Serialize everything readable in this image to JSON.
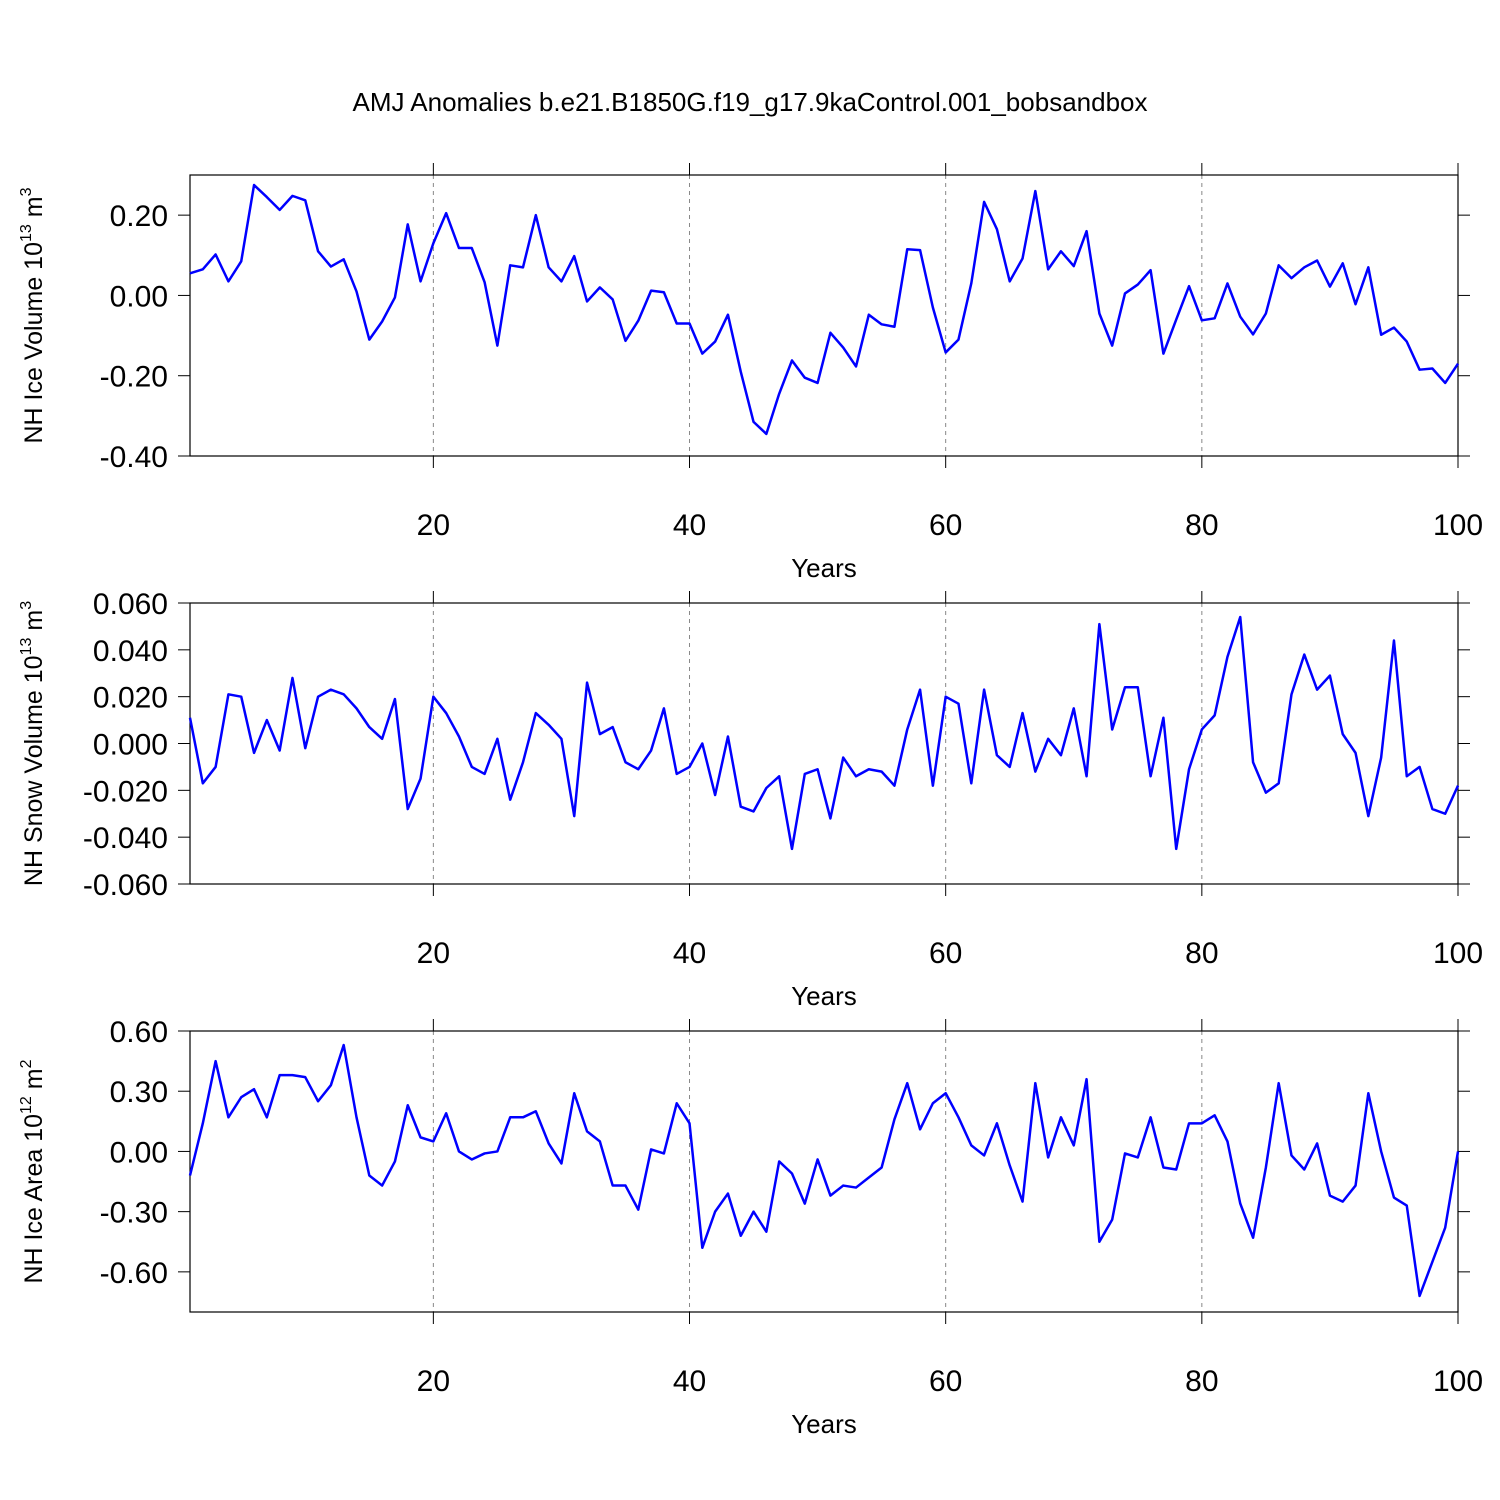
{
  "chart_data": [
    {
      "type": "line",
      "title": "AMJ Anomalies b.e21.B1850G.f19_g17.9kaControl.001_bobsandbox",
      "ylabel": [
        "NH Ice Volume 10",
        "13",
        "m",
        "3"
      ],
      "xlabel": "Years",
      "color": "#0000ff",
      "x": [
        1,
        2,
        3,
        4,
        5,
        6,
        7,
        8,
        9,
        10,
        11,
        12,
        13,
        14,
        15,
        16,
        17,
        18,
        19,
        20,
        21,
        22,
        23,
        24,
        25,
        26,
        27,
        28,
        29,
        30,
        31,
        32,
        33,
        34,
        35,
        36,
        37,
        38,
        39,
        40,
        41,
        42,
        43,
        44,
        45,
        46,
        47,
        48,
        49,
        50,
        51,
        52,
        53,
        54,
        55,
        56,
        57,
        58,
        59,
        60,
        61,
        62,
        63,
        64,
        65,
        66,
        67,
        68,
        69,
        70,
        71,
        72,
        73,
        74,
        75,
        76,
        77,
        78,
        79,
        80,
        81,
        82,
        83,
        84,
        85,
        86,
        87,
        88,
        89,
        90,
        91,
        92,
        93,
        94,
        95,
        96,
        97,
        98,
        99,
        100
      ],
      "values": [
        0.055,
        0.065,
        0.102,
        0.035,
        0.085,
        0.275,
        0.245,
        0.213,
        0.248,
        0.237,
        0.11,
        0.072,
        0.09,
        0.01,
        -0.11,
        -0.065,
        -0.005,
        0.177,
        0.035,
        0.13,
        0.205,
        0.118,
        0.118,
        0.033,
        -0.125,
        0.075,
        0.07,
        0.2,
        0.07,
        0.035,
        0.098,
        -0.015,
        0.02,
        -0.01,
        -0.113,
        -0.063,
        0.012,
        0.008,
        -0.07,
        -0.07,
        -0.145,
        -0.115,
        -0.048,
        -0.19,
        -0.315,
        -0.345,
        -0.245,
        -0.162,
        -0.205,
        -0.218,
        -0.093,
        -0.13,
        -0.177,
        -0.048,
        -0.072,
        -0.078,
        0.115,
        0.113,
        -0.03,
        -0.142,
        -0.11,
        0.03,
        0.233,
        0.165,
        0.035,
        0.092,
        0.26,
        0.065,
        0.11,
        0.073,
        0.16,
        -0.045,
        -0.125,
        0.005,
        0.027,
        0.063,
        -0.145,
        -0.06,
        0.023,
        -0.062,
        -0.057,
        0.03,
        -0.053,
        -0.097,
        -0.045,
        0.075,
        0.043,
        0.07,
        0.087,
        0.022,
        0.08,
        -0.022,
        0.07,
        -0.098,
        -0.08,
        -0.115,
        -0.185,
        -0.182,
        -0.218,
        -0.17
      ],
      "xlim": [
        1,
        100
      ],
      "xticks": [
        20,
        40,
        60,
        80,
        100
      ],
      "ylim": [
        -0.4,
        0.3
      ],
      "yticks": [
        {
          "value": -0.4,
          "label": "-0.40"
        },
        {
          "value": -0.2,
          "label": "-0.20"
        },
        {
          "value": 0,
          "label": "0.00"
        },
        {
          "value": 0.2,
          "label": "0.20"
        }
      ],
      "grid": true
    },
    {
      "type": "line",
      "ylabel": [
        "NH Snow Volume 10",
        "13",
        "m",
        "3"
      ],
      "xlabel": "Years",
      "color": "#0000ff",
      "x": [
        1,
        2,
        3,
        4,
        5,
        6,
        7,
        8,
        9,
        10,
        11,
        12,
        13,
        14,
        15,
        16,
        17,
        18,
        19,
        20,
        21,
        22,
        23,
        24,
        25,
        26,
        27,
        28,
        29,
        30,
        31,
        32,
        33,
        34,
        35,
        36,
        37,
        38,
        39,
        40,
        41,
        42,
        43,
        44,
        45,
        46,
        47,
        48,
        49,
        50,
        51,
        52,
        53,
        54,
        55,
        56,
        57,
        58,
        59,
        60,
        61,
        62,
        63,
        64,
        65,
        66,
        67,
        68,
        69,
        70,
        71,
        72,
        73,
        74,
        75,
        76,
        77,
        78,
        79,
        80,
        81,
        82,
        83,
        84,
        85,
        86,
        87,
        88,
        89,
        90,
        91,
        92,
        93,
        94,
        95,
        96,
        97,
        98,
        99,
        100
      ],
      "values": [
        0.011,
        -0.017,
        -0.01,
        0.021,
        0.02,
        -0.004,
        0.01,
        -0.003,
        0.028,
        -0.002,
        0.02,
        0.023,
        0.021,
        0.015,
        0.007,
        0.002,
        0.019,
        -0.028,
        -0.015,
        0.02,
        0.013,
        0.003,
        -0.01,
        -0.013,
        0.002,
        -0.024,
        -0.008,
        0.013,
        0.008,
        0.002,
        -0.031,
        0.026,
        0.004,
        0.007,
        -0.008,
        -0.011,
        -0.003,
        0.015,
        -0.013,
        -0.01,
        0.0,
        -0.022,
        0.003,
        -0.027,
        -0.029,
        -0.019,
        -0.014,
        -0.045,
        -0.013,
        -0.011,
        -0.032,
        -0.006,
        -0.014,
        -0.011,
        -0.012,
        -0.018,
        0.006,
        0.023,
        -0.018,
        0.02,
        0.017,
        -0.017,
        0.023,
        -0.005,
        -0.01,
        0.013,
        -0.012,
        0.002,
        -0.005,
        0.015,
        -0.014,
        0.051,
        0.006,
        0.024,
        0.024,
        -0.014,
        0.011,
        -0.045,
        -0.011,
        0.006,
        0.012,
        0.037,
        0.054,
        -0.008,
        -0.021,
        -0.017,
        0.021,
        0.038,
        0.023,
        0.029,
        0.004,
        -0.004,
        -0.031,
        -0.006,
        0.044,
        -0.014,
        -0.01,
        -0.028,
        -0.03,
        -0.018
      ],
      "xlim": [
        1,
        100
      ],
      "xticks": [
        20,
        40,
        60,
        80,
        100
      ],
      "ylim": [
        -0.06,
        0.06
      ],
      "yticks": [
        {
          "value": -0.06,
          "label": "-0.060"
        },
        {
          "value": -0.04,
          "label": "-0.040"
        },
        {
          "value": -0.02,
          "label": "-0.020"
        },
        {
          "value": 0,
          "label": "0.000"
        },
        {
          "value": 0.02,
          "label": "0.020"
        },
        {
          "value": 0.04,
          "label": "0.040"
        },
        {
          "value": 0.06,
          "label": "0.060"
        }
      ],
      "grid": true
    },
    {
      "type": "line",
      "ylabel": [
        "NH Ice Area 10",
        "12",
        "m",
        "2"
      ],
      "xlabel": "Years",
      "color": "#0000ff",
      "x": [
        1,
        2,
        3,
        4,
        5,
        6,
        7,
        8,
        9,
        10,
        11,
        12,
        13,
        14,
        15,
        16,
        17,
        18,
        19,
        20,
        21,
        22,
        23,
        24,
        25,
        26,
        27,
        28,
        29,
        30,
        31,
        32,
        33,
        34,
        35,
        36,
        37,
        38,
        39,
        40,
        41,
        42,
        43,
        44,
        45,
        46,
        47,
        48,
        49,
        50,
        51,
        52,
        53,
        54,
        55,
        56,
        57,
        58,
        59,
        60,
        61,
        62,
        63,
        64,
        65,
        66,
        67,
        68,
        69,
        70,
        71,
        72,
        73,
        74,
        75,
        76,
        77,
        78,
        79,
        80,
        81,
        82,
        83,
        84,
        85,
        86,
        87,
        88,
        89,
        90,
        91,
        92,
        93,
        94,
        95,
        96,
        97,
        98,
        99,
        100
      ],
      "values": [
        -0.12,
        0.14,
        0.45,
        0.17,
        0.27,
        0.31,
        0.17,
        0.38,
        0.38,
        0.37,
        0.25,
        0.33,
        0.53,
        0.17,
        -0.12,
        -0.17,
        -0.05,
        0.23,
        0.07,
        0.05,
        0.19,
        0.0,
        -0.04,
        -0.01,
        0.0,
        0.17,
        0.17,
        0.2,
        0.04,
        -0.06,
        0.29,
        0.1,
        0.05,
        -0.17,
        -0.17,
        -0.29,
        0.01,
        -0.01,
        0.24,
        0.14,
        -0.48,
        -0.3,
        -0.21,
        -0.42,
        -0.3,
        -0.4,
        -0.05,
        -0.11,
        -0.26,
        -0.04,
        -0.22,
        -0.17,
        -0.18,
        -0.13,
        -0.08,
        0.16,
        0.34,
        0.11,
        0.24,
        0.29,
        0.17,
        0.03,
        -0.02,
        0.14,
        -0.07,
        -0.25,
        0.34,
        -0.03,
        0.17,
        0.03,
        0.36,
        -0.45,
        -0.34,
        -0.01,
        -0.03,
        0.17,
        -0.08,
        -0.09,
        0.14,
        0.14,
        0.18,
        0.05,
        -0.26,
        -0.43,
        -0.08,
        0.34,
        -0.02,
        -0.09,
        0.04,
        -0.22,
        -0.25,
        -0.17,
        0.29,
        0.0,
        -0.23,
        -0.27,
        -0.72,
        -0.55,
        -0.38,
        0.0
      ],
      "xlim": [
        1,
        100
      ],
      "xticks": [
        20,
        40,
        60,
        80,
        100
      ],
      "ylim": [
        -0.8,
        0.6
      ],
      "yticks": [
        {
          "value": -0.6,
          "label": "-0.60"
        },
        {
          "value": -0.3,
          "label": "-0.30"
        },
        {
          "value": 0,
          "label": "0.00"
        },
        {
          "value": 0.3,
          "label": "0.30"
        },
        {
          "value": 0.6,
          "label": "0.60"
        }
      ],
      "grid": true
    }
  ]
}
